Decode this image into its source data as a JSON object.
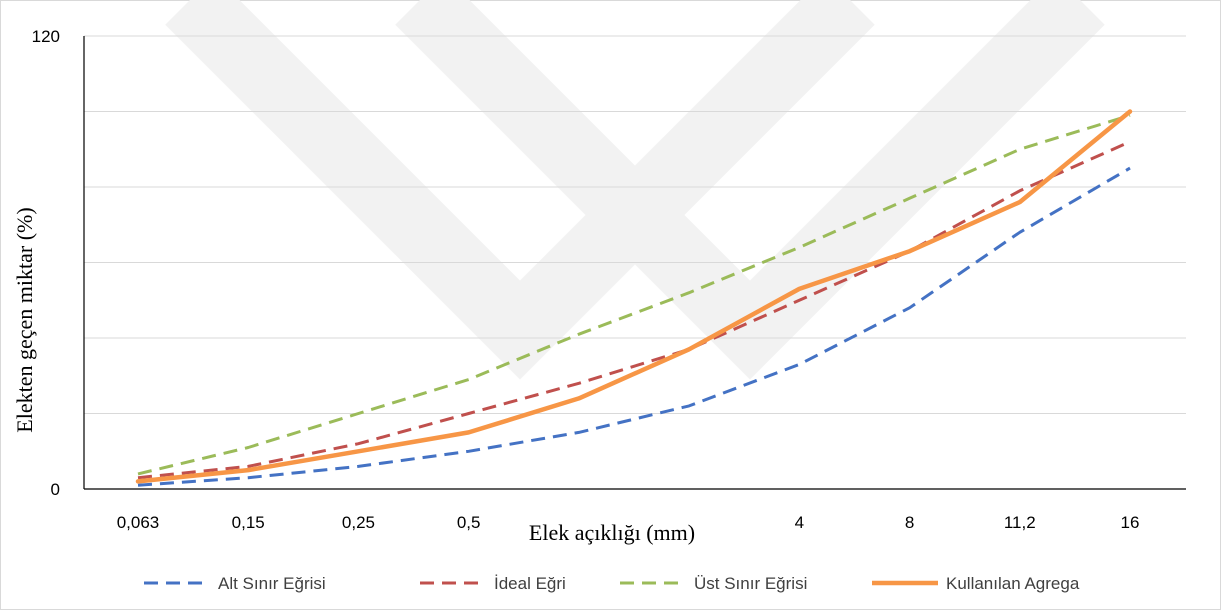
{
  "chart_data": {
    "type": "line",
    "categories": [
      "0,063",
      "0,15",
      "0,25",
      "0,5",
      "",
      "",
      "4",
      "8",
      "11,2",
      "16"
    ],
    "xlabel": "Elek açıklığı (mm)",
    "ylabel": "Elekten geçen miktar (%)",
    "ylim": [
      0,
      120
    ],
    "y_tick_labels": [
      "0",
      "120"
    ],
    "gridlines": [
      0,
      20,
      40,
      60,
      80,
      100,
      120
    ],
    "grid": true,
    "legend_position": "bottom",
    "series": [
      {
        "name": "Alt Sınır Eğrisi",
        "color": "#4472c4",
        "dash": true,
        "values": [
          1,
          3,
          6,
          10,
          15,
          22,
          33,
          48,
          68,
          85
        ]
      },
      {
        "name": "İdeal Eğri",
        "color": "#c0504d",
        "dash": true,
        "values": [
          3,
          6,
          12,
          20,
          28,
          37,
          50,
          63,
          79,
          92
        ]
      },
      {
        "name": "Üst Sınır Eğrisi",
        "color": "#9bbb59",
        "dash": true,
        "values": [
          4,
          11,
          20,
          29,
          41,
          52,
          64,
          77,
          90,
          99
        ]
      },
      {
        "name": "Kullanılan Agrega",
        "color": "#f79646",
        "dash": false,
        "values": [
          2,
          5,
          10,
          15,
          24,
          37,
          53,
          63,
          76,
          100
        ]
      }
    ]
  }
}
